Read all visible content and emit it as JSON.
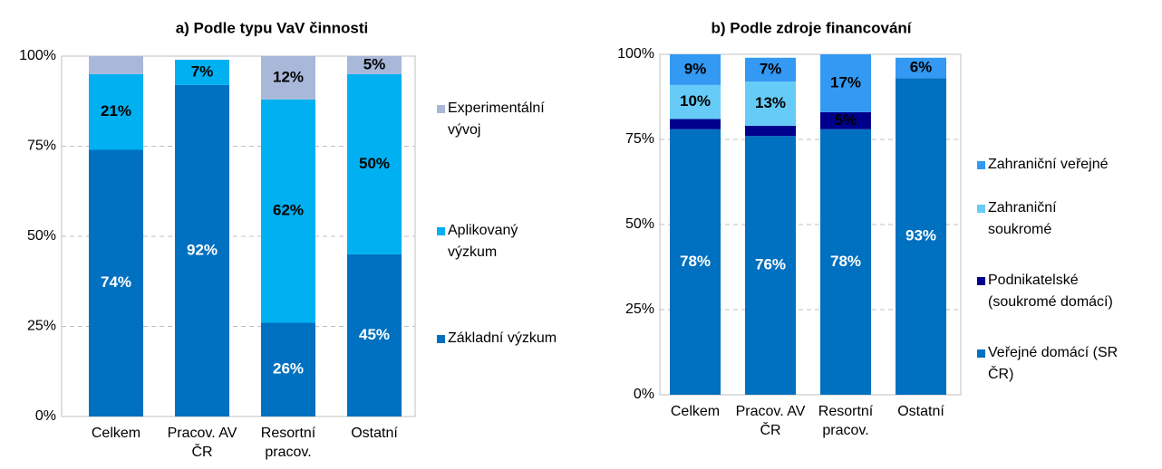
{
  "chart_data": [
    {
      "type": "stacked_bar",
      "title": "a) Podle typu VaV činnosti",
      "categories": [
        "Celkem",
        "Pracov. AV ČR",
        "Resortní pracov.",
        "Ostatní"
      ],
      "ylim": [
        0,
        100
      ],
      "yticks": [
        {
          "value": 0,
          "label": "0%"
        },
        {
          "value": 25,
          "label": "25%"
        },
        {
          "value": 50,
          "label": "50%"
        },
        {
          "value": 75,
          "label": "75%"
        },
        {
          "value": 100,
          "label": "100%"
        }
      ],
      "grid": true,
      "series": [
        {
          "name": "Základní výzkum",
          "color": "#0070c0",
          "label_color": "#ffffff",
          "values": [
            74,
            92,
            26,
            45
          ],
          "value_labels": [
            "74%",
            "92%",
            "26%",
            "45%"
          ]
        },
        {
          "name": "Aplikovaný výzkum",
          "color": "#00b0f0",
          "label_color": "#000000",
          "values": [
            21,
            7,
            62,
            50
          ],
          "value_labels": [
            "21%",
            "7%",
            "62%",
            "50%"
          ]
        },
        {
          "name": "Experimentální vývoj",
          "color": "#a9b8d9",
          "label_color": "#000000",
          "values": [
            5,
            0,
            12,
            5
          ],
          "value_labels": [
            null,
            null,
            "12%",
            "5%"
          ]
        }
      ]
    },
    {
      "type": "stacked_bar",
      "title": "b) Podle zdroje financování",
      "categories": [
        "Celkem",
        "Pracov. AV ČR",
        "Resortní pracov.",
        "Ostatní"
      ],
      "ylim": [
        0,
        100
      ],
      "yticks": [
        {
          "value": 0,
          "label": "0%"
        },
        {
          "value": 25,
          "label": "25%"
        },
        {
          "value": 50,
          "label": "50%"
        },
        {
          "value": 75,
          "label": "75%"
        },
        {
          "value": 100,
          "label": "100%"
        }
      ],
      "grid": true,
      "series": [
        {
          "name": "Veřejné domácí (SR ČR)",
          "color": "#0070c0",
          "label_color": "#ffffff",
          "values": [
            78,
            76,
            78,
            93
          ],
          "value_labels": [
            "78%",
            "76%",
            "78%",
            "93%"
          ]
        },
        {
          "name": "Podnikatelské (soukromé domácí)",
          "color": "#00008c",
          "label_color": "#000000",
          "values": [
            3,
            3,
            5,
            0
          ],
          "value_labels": [
            null,
            null,
            "5%",
            null
          ]
        },
        {
          "name": "Zahraniční soukromé",
          "color": "#66ccf7",
          "label_color": "#000000",
          "values": [
            10,
            13,
            0,
            0
          ],
          "value_labels": [
            "10%",
            "13%",
            null,
            null
          ]
        },
        {
          "name": "Zahraniční veřejné",
          "color": "#3399f3",
          "label_color": "#000000",
          "values": [
            9,
            7,
            17,
            6
          ],
          "value_labels": [
            "9%",
            "7%",
            "17%",
            "6%"
          ]
        }
      ]
    }
  ]
}
